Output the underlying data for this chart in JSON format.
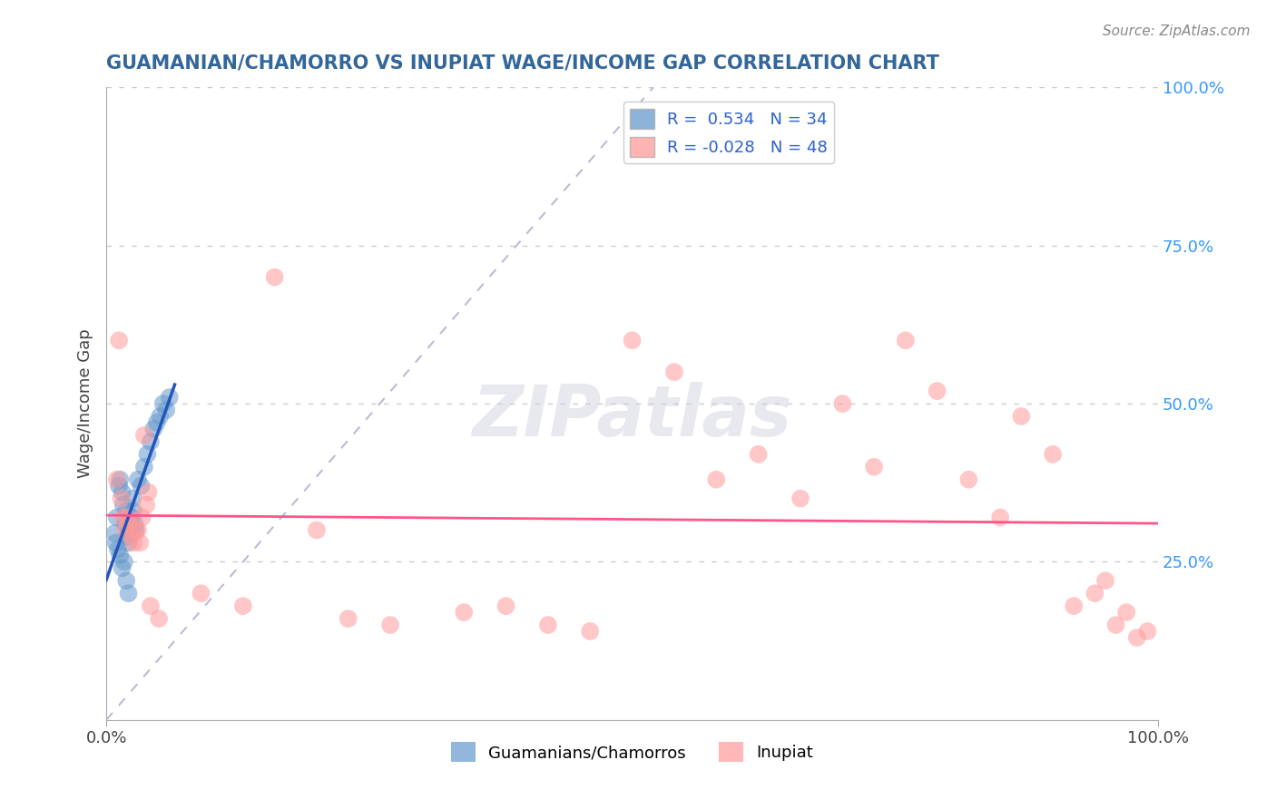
{
  "title": "GUAMANIAN/CHAMORRO VS INUPIAT WAGE/INCOME GAP CORRELATION CHART",
  "source": "Source: ZipAtlas.com",
  "ylabel": "Wage/Income Gap",
  "legend_label_blue": "Guamanians/Chamorros",
  "legend_label_pink": "Inupiat",
  "r_blue": 0.534,
  "n_blue": 34,
  "r_pink": -0.028,
  "n_pink": 48,
  "blue_color": "#6699CC",
  "pink_color": "#FF9999",
  "blue_line_color": "#2255BB",
  "pink_line_color": "#FF5588",
  "title_color": "#336699",
  "source_color": "#888888",
  "r_value_color": "#3366CC",
  "blue_scatter": [
    [
      0.008,
      0.295
    ],
    [
      0.01,
      0.32
    ],
    [
      0.012,
      0.37
    ],
    [
      0.013,
      0.38
    ],
    [
      0.015,
      0.36
    ],
    [
      0.016,
      0.34
    ],
    [
      0.018,
      0.31
    ],
    [
      0.019,
      0.33
    ],
    [
      0.02,
      0.29
    ],
    [
      0.021,
      0.28
    ],
    [
      0.022,
      0.3
    ],
    [
      0.024,
      0.32
    ],
    [
      0.025,
      0.35
    ],
    [
      0.026,
      0.33
    ],
    [
      0.027,
      0.31
    ],
    [
      0.028,
      0.3
    ],
    [
      0.03,
      0.38
    ],
    [
      0.033,
      0.37
    ],
    [
      0.036,
      0.4
    ],
    [
      0.039,
      0.42
    ],
    [
      0.042,
      0.44
    ],
    [
      0.045,
      0.46
    ],
    [
      0.048,
      0.47
    ],
    [
      0.051,
      0.48
    ],
    [
      0.054,
      0.5
    ],
    [
      0.057,
      0.49
    ],
    [
      0.06,
      0.51
    ],
    [
      0.009,
      0.28
    ],
    [
      0.011,
      0.27
    ],
    [
      0.013,
      0.26
    ],
    [
      0.015,
      0.24
    ],
    [
      0.017,
      0.25
    ],
    [
      0.019,
      0.22
    ],
    [
      0.021,
      0.2
    ]
  ],
  "pink_scatter": [
    [
      0.01,
      0.38
    ],
    [
      0.012,
      0.6
    ],
    [
      0.014,
      0.35
    ],
    [
      0.016,
      0.32
    ],
    [
      0.018,
      0.3
    ],
    [
      0.02,
      0.32
    ],
    [
      0.022,
      0.31
    ],
    [
      0.024,
      0.29
    ],
    [
      0.026,
      0.28
    ],
    [
      0.028,
      0.3
    ],
    [
      0.03,
      0.3
    ],
    [
      0.032,
      0.28
    ],
    [
      0.034,
      0.32
    ],
    [
      0.036,
      0.45
    ],
    [
      0.038,
      0.34
    ],
    [
      0.04,
      0.36
    ],
    [
      0.042,
      0.18
    ],
    [
      0.05,
      0.16
    ],
    [
      0.09,
      0.2
    ],
    [
      0.13,
      0.18
    ],
    [
      0.16,
      0.7
    ],
    [
      0.2,
      0.3
    ],
    [
      0.23,
      0.16
    ],
    [
      0.27,
      0.15
    ],
    [
      0.34,
      0.17
    ],
    [
      0.38,
      0.18
    ],
    [
      0.42,
      0.15
    ],
    [
      0.46,
      0.14
    ],
    [
      0.5,
      0.6
    ],
    [
      0.54,
      0.55
    ],
    [
      0.58,
      0.38
    ],
    [
      0.62,
      0.42
    ],
    [
      0.66,
      0.35
    ],
    [
      0.7,
      0.5
    ],
    [
      0.73,
      0.4
    ],
    [
      0.76,
      0.6
    ],
    [
      0.79,
      0.52
    ],
    [
      0.82,
      0.38
    ],
    [
      0.85,
      0.32
    ],
    [
      0.87,
      0.48
    ],
    [
      0.9,
      0.42
    ],
    [
      0.92,
      0.18
    ],
    [
      0.94,
      0.2
    ],
    [
      0.95,
      0.22
    ],
    [
      0.96,
      0.15
    ],
    [
      0.97,
      0.17
    ],
    [
      0.98,
      0.13
    ],
    [
      0.99,
      0.14
    ]
  ],
  "xlim": [
    0.0,
    1.0
  ],
  "ylim": [
    0.0,
    1.0
  ],
  "right_yticks": [
    0.25,
    0.5,
    0.75,
    1.0
  ],
  "right_yticklabels": [
    "25.0%",
    "50.0%",
    "75.0%",
    "100.0%"
  ],
  "xticklabels": [
    "0.0%",
    "100.0%"
  ],
  "background_color": "#FFFFFF",
  "grid_color": "#CCCCCC"
}
